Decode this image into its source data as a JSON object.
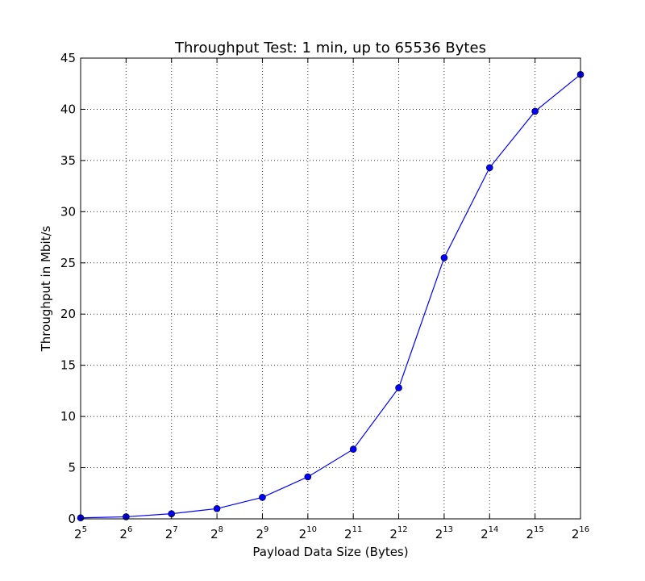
{
  "chart_data": {
    "type": "line",
    "title": "Throughput Test: 1 min, up to 65536 Bytes",
    "xlabel": "Payload Data Size (Bytes)",
    "ylabel": "Throughput in Mbit/s",
    "x_scale": "log2",
    "x_base": "2",
    "x_ticks": [
      5,
      6,
      7,
      8,
      9,
      10,
      11,
      12,
      13,
      14,
      15,
      16
    ],
    "x_tick_exponents": [
      "5",
      "6",
      "7",
      "8",
      "9",
      "10",
      "11",
      "12",
      "13",
      "14",
      "15",
      "16"
    ],
    "xlim": [
      32,
      65536
    ],
    "ylim": [
      0,
      45
    ],
    "y_ticks": [
      0,
      5,
      10,
      15,
      20,
      25,
      30,
      35,
      40,
      45
    ],
    "y_tick_labels": [
      "0",
      "5",
      "10",
      "15",
      "20",
      "25",
      "30",
      "35",
      "40",
      "45"
    ],
    "grid": true,
    "series": [
      {
        "color": "#0000ff",
        "marker": "circle",
        "x": [
          32,
          64,
          128,
          256,
          512,
          1024,
          2048,
          4096,
          8192,
          16384,
          32768,
          65536
        ],
        "y": [
          0.1,
          0.2,
          0.5,
          1.0,
          2.1,
          4.1,
          6.8,
          12.8,
          25.5,
          34.3,
          39.8,
          43.4
        ]
      }
    ]
  }
}
